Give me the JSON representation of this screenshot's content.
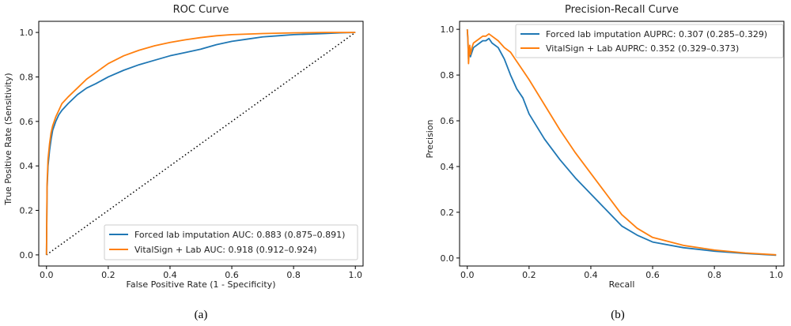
{
  "colors": {
    "forced": "#1f77b4",
    "vital": "#ff7f0e",
    "axis": "#000000",
    "diagonal": "#000000"
  },
  "chart_data": [
    {
      "type": "line",
      "title": "ROC Curve",
      "xlabel": "False Positive Rate (1 - Specificity)",
      "ylabel": "True Positive Rate (Sensitivity)",
      "xlim": [
        -0.025,
        1.025
      ],
      "ylim": [
        -0.05,
        1.05
      ],
      "xticks": [
        "0.0",
        "0.2",
        "0.4",
        "0.6",
        "0.8",
        "1.0"
      ],
      "yticks": [
        "0.0",
        "0.2",
        "0.4",
        "0.6",
        "0.8",
        "1.0"
      ],
      "grid": false,
      "legend_position": "lower-right",
      "caption": "(a)",
      "reference_line": {
        "style": "dotted",
        "x": [
          0,
          1
        ],
        "y": [
          0,
          1
        ]
      },
      "series": [
        {
          "name": "Forced lab imputation AUC: 0.883 (0.875–0.891)",
          "color": "#1f77b4",
          "x": [
            0,
            0.002,
            0.005,
            0.01,
            0.015,
            0.02,
            0.03,
            0.04,
            0.05,
            0.07,
            0.1,
            0.13,
            0.16,
            0.2,
            0.25,
            0.3,
            0.35,
            0.4,
            0.45,
            0.5,
            0.55,
            0.6,
            0.65,
            0.7,
            0.75,
            0.8,
            0.9,
            0.95,
            1.0
          ],
          "y": [
            0,
            0.3,
            0.4,
            0.47,
            0.52,
            0.56,
            0.6,
            0.63,
            0.65,
            0.68,
            0.72,
            0.75,
            0.77,
            0.8,
            0.83,
            0.855,
            0.875,
            0.895,
            0.91,
            0.925,
            0.945,
            0.96,
            0.97,
            0.98,
            0.985,
            0.99,
            0.995,
            0.998,
            1.0
          ]
        },
        {
          "name": "VitalSign + Lab AUC: 0.918 (0.912–0.924)",
          "color": "#ff7f0e",
          "x": [
            0,
            0.002,
            0.005,
            0.01,
            0.015,
            0.02,
            0.03,
            0.04,
            0.05,
            0.07,
            0.1,
            0.13,
            0.16,
            0.2,
            0.25,
            0.3,
            0.35,
            0.4,
            0.45,
            0.5,
            0.55,
            0.6,
            0.7,
            0.8,
            0.9,
            1.0
          ],
          "y": [
            0,
            0.32,
            0.43,
            0.5,
            0.55,
            0.58,
            0.62,
            0.65,
            0.68,
            0.71,
            0.75,
            0.79,
            0.82,
            0.86,
            0.895,
            0.92,
            0.94,
            0.955,
            0.967,
            0.977,
            0.985,
            0.99,
            0.995,
            0.998,
            1.0,
            1.0
          ]
        }
      ]
    },
    {
      "type": "line",
      "title": "Precision-Recall Curve",
      "xlabel": "Recall",
      "ylabel": "Precision",
      "xlim": [
        -0.025,
        1.025
      ],
      "ylim": [
        -0.035,
        1.035
      ],
      "xticks": [
        "0.0",
        "0.2",
        "0.4",
        "0.6",
        "0.8",
        "1.0"
      ],
      "yticks": [
        "0.0",
        "0.2",
        "0.4",
        "0.6",
        "0.8",
        "1.0"
      ],
      "grid": false,
      "legend_position": "top-right",
      "caption": "(b)",
      "series": [
        {
          "name": "Forced lab imputation AUPRC: 0.307 (0.285–0.329)",
          "color": "#1f77b4",
          "x": [
            0,
            0.002,
            0.004,
            0.006,
            0.008,
            0.01,
            0.015,
            0.02,
            0.03,
            0.04,
            0.05,
            0.06,
            0.07,
            0.08,
            0.1,
            0.12,
            0.14,
            0.16,
            0.18,
            0.2,
            0.25,
            0.3,
            0.35,
            0.4,
            0.45,
            0.5,
            0.55,
            0.6,
            0.7,
            0.8,
            0.9,
            1.0
          ],
          "y": [
            1.0,
            0.95,
            0.87,
            0.9,
            0.92,
            0.88,
            0.9,
            0.92,
            0.93,
            0.94,
            0.95,
            0.95,
            0.96,
            0.94,
            0.92,
            0.87,
            0.8,
            0.74,
            0.7,
            0.63,
            0.52,
            0.43,
            0.35,
            0.28,
            0.21,
            0.14,
            0.1,
            0.07,
            0.045,
            0.03,
            0.02,
            0.012
          ]
        },
        {
          "name": "VitalSign + Lab AUPRC: 0.352 (0.329–0.373)",
          "color": "#ff7f0e",
          "x": [
            0,
            0.002,
            0.004,
            0.006,
            0.008,
            0.01,
            0.015,
            0.02,
            0.03,
            0.04,
            0.05,
            0.06,
            0.07,
            0.08,
            0.1,
            0.12,
            0.14,
            0.16,
            0.18,
            0.2,
            0.25,
            0.3,
            0.35,
            0.4,
            0.45,
            0.5,
            0.55,
            0.6,
            0.7,
            0.8,
            0.9,
            1.0
          ],
          "y": [
            1.0,
            0.96,
            0.85,
            0.9,
            0.93,
            0.89,
            0.92,
            0.94,
            0.95,
            0.96,
            0.97,
            0.97,
            0.98,
            0.97,
            0.95,
            0.92,
            0.9,
            0.86,
            0.82,
            0.78,
            0.67,
            0.56,
            0.46,
            0.37,
            0.28,
            0.19,
            0.13,
            0.09,
            0.055,
            0.035,
            0.022,
            0.014
          ]
        }
      ]
    }
  ]
}
